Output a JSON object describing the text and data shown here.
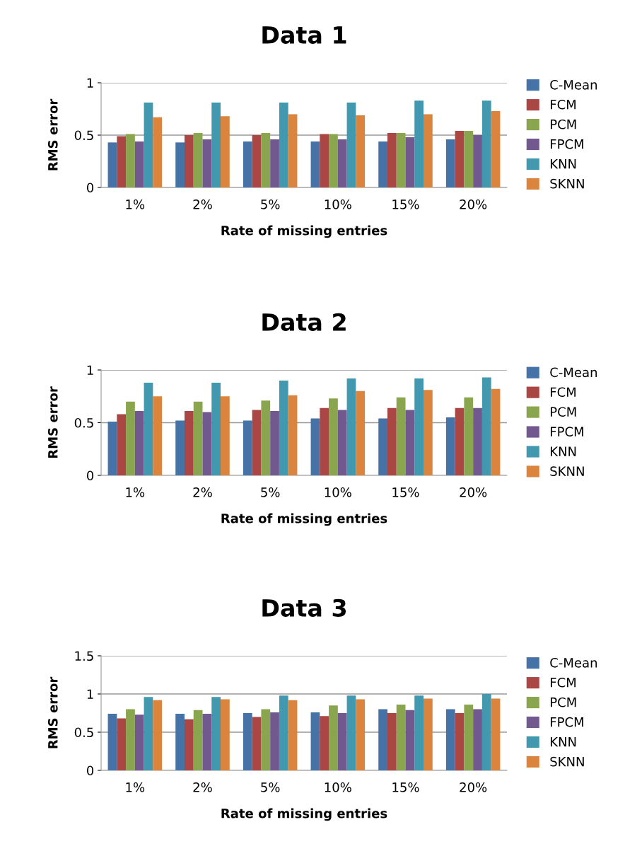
{
  "chart_data": [
    {
      "type": "bar",
      "title": "Data 1",
      "xlabel": "Rate of missing entries",
      "ylabel": "RMS error",
      "categories": [
        "1%",
        "2%",
        "5%",
        "10%",
        "15%",
        "20%"
      ],
      "ylim": [
        0,
        1
      ],
      "yticks": [
        0,
        0.5,
        1
      ],
      "grid": "y",
      "legend": "right",
      "series": [
        {
          "name": "C-Mean",
          "color": "#4572a7",
          "values": [
            0.43,
            0.43,
            0.44,
            0.44,
            0.44,
            0.46
          ]
        },
        {
          "name": "FCM",
          "color": "#aa4643",
          "values": [
            0.49,
            0.5,
            0.5,
            0.51,
            0.52,
            0.54
          ]
        },
        {
          "name": "PCM",
          "color": "#89a54e",
          "values": [
            0.51,
            0.52,
            0.52,
            0.51,
            0.52,
            0.54
          ]
        },
        {
          "name": "FPCM",
          "color": "#71588f",
          "values": [
            0.44,
            0.46,
            0.46,
            0.46,
            0.48,
            0.5
          ]
        },
        {
          "name": "KNN",
          "color": "#4198af",
          "values": [
            0.81,
            0.81,
            0.81,
            0.81,
            0.83,
            0.83
          ]
        },
        {
          "name": "SKNN",
          "color": "#db843d",
          "values": [
            0.67,
            0.68,
            0.7,
            0.69,
            0.7,
            0.73
          ]
        }
      ]
    },
    {
      "type": "bar",
      "title": "Data 2",
      "xlabel": "Rate of missing entries",
      "ylabel": "RMS error",
      "categories": [
        "1%",
        "2%",
        "5%",
        "10%",
        "15%",
        "20%"
      ],
      "ylim": [
        0,
        1
      ],
      "yticks": [
        0,
        0.5,
        1
      ],
      "grid": "y",
      "legend": "right",
      "series": [
        {
          "name": "C-Mean",
          "color": "#4572a7",
          "values": [
            0.51,
            0.52,
            0.52,
            0.54,
            0.54,
            0.55
          ]
        },
        {
          "name": "FCM",
          "color": "#aa4643",
          "values": [
            0.58,
            0.61,
            0.62,
            0.64,
            0.64,
            0.64
          ]
        },
        {
          "name": "PCM",
          "color": "#89a54e",
          "values": [
            0.7,
            0.7,
            0.71,
            0.73,
            0.74,
            0.74
          ]
        },
        {
          "name": "FPCM",
          "color": "#71588f",
          "values": [
            0.61,
            0.6,
            0.61,
            0.62,
            0.62,
            0.64
          ]
        },
        {
          "name": "KNN",
          "color": "#4198af",
          "values": [
            0.88,
            0.88,
            0.9,
            0.92,
            0.92,
            0.93
          ]
        },
        {
          "name": "SKNN",
          "color": "#db843d",
          "values": [
            0.75,
            0.75,
            0.76,
            0.8,
            0.81,
            0.82
          ]
        }
      ]
    },
    {
      "type": "bar",
      "title": "Data 3",
      "xlabel": "Rate of missing entries",
      "ylabel": "RMS error",
      "categories": [
        "1%",
        "2%",
        "5%",
        "10%",
        "15%",
        "20%"
      ],
      "ylim": [
        0,
        1.5
      ],
      "yticks": [
        0,
        0.5,
        1,
        1.5
      ],
      "grid": "y",
      "legend": "right",
      "series": [
        {
          "name": "C-Mean",
          "color": "#4572a7",
          "values": [
            0.74,
            0.74,
            0.75,
            0.76,
            0.8,
            0.8
          ]
        },
        {
          "name": "FCM",
          "color": "#aa4643",
          "values": [
            0.68,
            0.67,
            0.7,
            0.71,
            0.75,
            0.75
          ]
        },
        {
          "name": "PCM",
          "color": "#89a54e",
          "values": [
            0.8,
            0.79,
            0.8,
            0.85,
            0.86,
            0.86
          ]
        },
        {
          "name": "FPCM",
          "color": "#71588f",
          "values": [
            0.73,
            0.74,
            0.76,
            0.75,
            0.79,
            0.8
          ]
        },
        {
          "name": "KNN",
          "color": "#4198af",
          "values": [
            0.96,
            0.96,
            0.98,
            0.98,
            0.98,
            1.0
          ]
        },
        {
          "name": "SKNN",
          "color": "#db843d",
          "values": [
            0.92,
            0.93,
            0.92,
            0.93,
            0.94,
            0.94
          ]
        }
      ]
    }
  ]
}
